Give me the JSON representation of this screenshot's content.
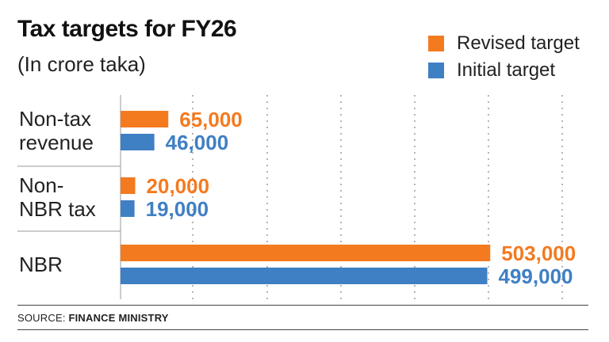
{
  "header": {
    "title": "Tax targets for FY26",
    "subtitle": "(In crore taka)"
  },
  "legend": {
    "items": [
      {
        "label": "Revised target",
        "color": "#f47a20"
      },
      {
        "label": "Initial target",
        "color": "#3f7fc4"
      }
    ]
  },
  "chart_data": {
    "type": "bar",
    "orientation": "horizontal",
    "categories": [
      "Non-tax revenue",
      "Non-NBR tax",
      "NBR"
    ],
    "category_lines": [
      [
        "Non-tax",
        "revenue"
      ],
      [
        "Non-",
        "NBR tax"
      ],
      [
        "NBR"
      ]
    ],
    "series": [
      {
        "name": "Revised target",
        "values": [
          65000,
          20000,
          503000
        ],
        "labels": [
          "65,000",
          "20,000",
          "503,000"
        ],
        "color": "#f47a20"
      },
      {
        "name": "Initial target",
        "values": [
          46000,
          19000,
          499000
        ],
        "labels": [
          "46,000",
          "19,000",
          "499,000"
        ],
        "color": "#3f7fc4"
      }
    ],
    "xlim": [
      0,
      600000
    ],
    "grid": true,
    "legend_position": "top-right"
  },
  "source": {
    "prefix": "SOURCE:",
    "name": "FINANCE MINISTRY"
  }
}
